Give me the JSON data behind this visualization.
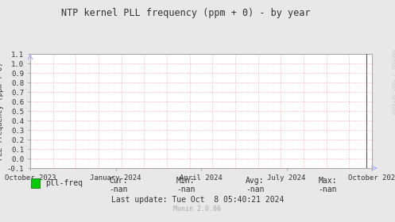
{
  "title": "NTP kernel PLL frequency (ppm + 0) - by year",
  "ylabel": "PLL frequency (ppm + 0)",
  "bg_color": "#e8e8e8",
  "plot_bg_color": "#ffffff",
  "grid_color": "#ffaaaa",
  "ylim": [
    -0.1,
    1.1
  ],
  "yticks": [
    -0.1,
    0.0,
    0.1,
    0.2,
    0.3,
    0.4,
    0.5,
    0.6,
    0.7,
    0.8,
    0.9,
    1.0,
    1.1
  ],
  "xtick_labels": [
    "October 2023",
    "January 2024",
    "April 2024",
    "July 2024",
    "October 202"
  ],
  "xtick_positions": [
    0.0,
    0.25,
    0.5,
    0.75,
    1.0
  ],
  "legend_label": "pll-freq",
  "legend_color": "#00cc00",
  "cur_val": "-nan",
  "min_val": "-nan",
  "avg_val": "-nan",
  "max_val": "-nan",
  "last_update": "Last update: Tue Oct  8 05:40:21 2024",
  "munin_version": "Munin 2.0.66",
  "watermark": "RRDTOOL / TOBI OETIKER",
  "vertical_line_x": 0.983,
  "title_color": "#333333",
  "tick_color": "#333333",
  "axis_color": "#aaaaaa",
  "arrow_color": "#aaaaff",
  "spine_color": "#aaaaaa"
}
